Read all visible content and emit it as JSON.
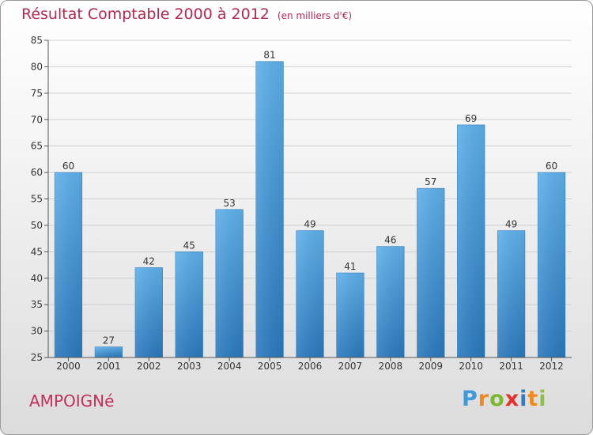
{
  "chart_data": {
    "type": "bar",
    "title": "Résultat Comptable 2000 à 2012",
    "subtitle": "(en milliers d'€)",
    "categories": [
      "2000",
      "2001",
      "2002",
      "2003",
      "2004",
      "2005",
      "2006",
      "2007",
      "2008",
      "2009",
      "2010",
      "2011",
      "2012"
    ],
    "values": [
      60,
      27,
      42,
      45,
      53,
      81,
      49,
      41,
      46,
      57,
      69,
      49,
      60
    ],
    "ylim": [
      25,
      85
    ],
    "yticks": [
      25,
      30,
      35,
      40,
      45,
      50,
      55,
      60,
      65,
      70,
      75,
      80,
      85
    ],
    "grid": true,
    "bar_color": "#4a9fdf",
    "data_labels": true
  },
  "footer": {
    "commune": "AMPOIGNé",
    "logo_letters": [
      "P",
      "r",
      "o",
      "x",
      "i",
      "t",
      "i"
    ]
  },
  "colors": {
    "title": "#b5294f",
    "commune": "#c2305a"
  }
}
